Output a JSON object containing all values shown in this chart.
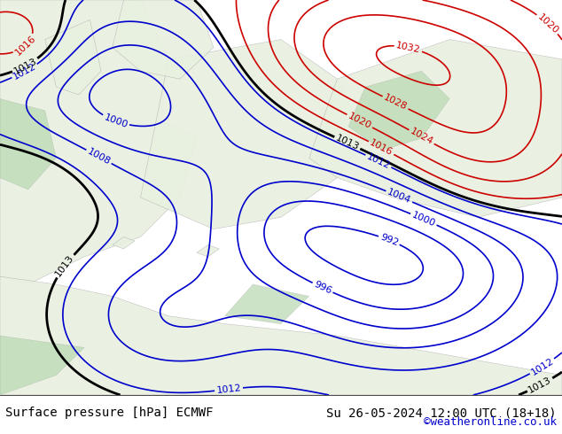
{
  "title_left": "Surface pressure [hPa] ECMWF",
  "title_right": "Su 26-05-2024 12:00 UTC (18+18)",
  "credit": "©weatheronline.co.uk",
  "bg_map_color": "#d0e8d0",
  "water_color": "#c8d8e8",
  "land_light": "#e8f0e0",
  "contour_colors": {
    "blue": "#0000cc",
    "red": "#cc0000",
    "black": "#000000"
  },
  "label_fontsize": 9,
  "title_fontsize": 10,
  "credit_color": "#0000cc",
  "fig_width": 6.34,
  "fig_height": 4.9,
  "dpi": 100
}
